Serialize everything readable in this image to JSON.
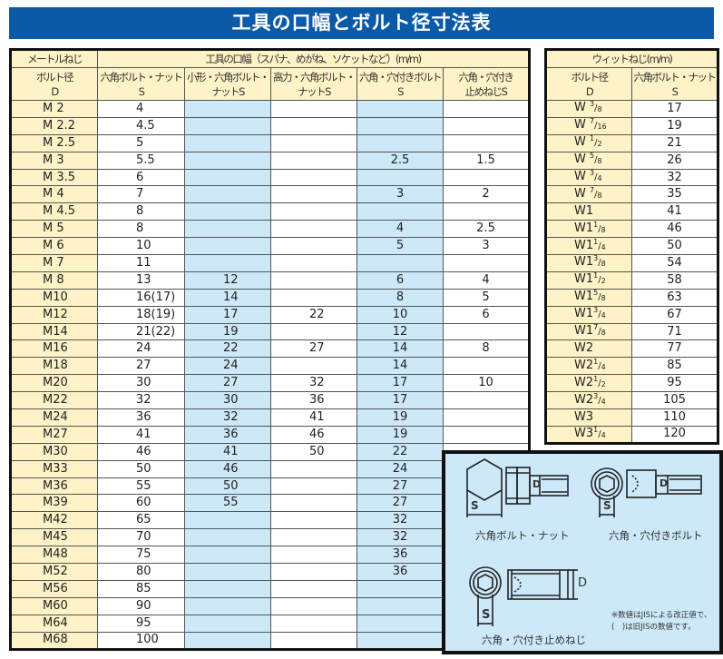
{
  "title": "工具の口幅とボルト径寸法表",
  "metric": {
    "group_header": "メートルねじ",
    "tool_header": "工具の口幅（スパナ、めがね、ソケットなど）(m/m)",
    "columns": [
      "ボルト径\nD",
      "六角ボルト・ナット\nS",
      "小形・六角ボルト・\nナットS",
      "高力・六角ボルト・\nナットS",
      "六角・穴付きボルト\nS",
      "六角・穴付き\n止めねじS"
    ],
    "rows": [
      [
        "M 2",
        "4",
        "",
        "",
        "",
        ""
      ],
      [
        "M 2.2",
        "4.5",
        "",
        "",
        "",
        ""
      ],
      [
        "M 2.5",
        "5",
        "",
        "",
        "",
        ""
      ],
      [
        "M 3",
        "5.5",
        "",
        "",
        "2.5",
        "1.5"
      ],
      [
        "M 3.5",
        "6",
        "",
        "",
        "",
        ""
      ],
      [
        "M 4",
        "7",
        "",
        "",
        "3",
        "2"
      ],
      [
        "M 4.5",
        "8",
        "",
        "",
        "",
        ""
      ],
      [
        "M 5",
        "8",
        "",
        "",
        "4",
        "2.5"
      ],
      [
        "M 6",
        "10",
        "",
        "",
        "5",
        "3"
      ],
      [
        "M 7",
        "11",
        "",
        "",
        "",
        ""
      ],
      [
        "M 8",
        "13",
        "12",
        "",
        "6",
        "4"
      ],
      [
        "M10",
        "16(17)",
        "14",
        "",
        "8",
        "5"
      ],
      [
        "M12",
        "18(19)",
        "17",
        "22",
        "10",
        "6"
      ],
      [
        "M14",
        "21(22)",
        "19",
        "",
        "12",
        ""
      ],
      [
        "M16",
        "24",
        "22",
        "27",
        "14",
        "8"
      ],
      [
        "M18",
        "27",
        "24",
        "",
        "14",
        ""
      ],
      [
        "M20",
        "30",
        "27",
        "32",
        "17",
        "10"
      ],
      [
        "M22",
        "32",
        "30",
        "36",
        "17",
        ""
      ],
      [
        "M24",
        "36",
        "32",
        "41",
        "19",
        ""
      ],
      [
        "M27",
        "41",
        "36",
        "46",
        "19",
        ""
      ],
      [
        "M30",
        "46",
        "41",
        "50",
        "22",
        ""
      ],
      [
        "M33",
        "50",
        "46",
        "",
        "24",
        ""
      ],
      [
        "M36",
        "55",
        "50",
        "",
        "27",
        ""
      ],
      [
        "M39",
        "60",
        "55",
        "",
        "27",
        ""
      ],
      [
        "M42",
        "65",
        "",
        "",
        "32",
        ""
      ],
      [
        "M45",
        "70",
        "",
        "",
        "32",
        ""
      ],
      [
        "M48",
        "75",
        "",
        "",
        "36",
        ""
      ],
      [
        "M52",
        "80",
        "",
        "",
        "36",
        ""
      ],
      [
        "M56",
        "85",
        "",
        "",
        "",
        ""
      ],
      [
        "M60",
        "90",
        "",
        "",
        "",
        ""
      ],
      [
        "M64",
        "95",
        "",
        "",
        "",
        ""
      ],
      [
        "M68",
        "100",
        "",
        "",
        "",
        ""
      ]
    ]
  },
  "whitworth": {
    "group_header": "ウィットねじ(m/m)",
    "columns": [
      "ボルト径\nD",
      "六角ボルト・ナット\nS"
    ],
    "rows": [
      {
        "w": "W ",
        "n": "3",
        "d": "8",
        "s": "17"
      },
      {
        "w": "W ",
        "n": "7",
        "d": "16",
        "s": "19"
      },
      {
        "w": "W ",
        "n": "1",
        "d": "2",
        "s": "21"
      },
      {
        "w": "W ",
        "n": "5",
        "d": "8",
        "s": "26"
      },
      {
        "w": "W ",
        "n": "3",
        "d": "4",
        "s": "32"
      },
      {
        "w": "W ",
        "n": "7",
        "d": "8",
        "s": "35"
      },
      {
        "w": "W1",
        "n": "",
        "d": "",
        "s": "41"
      },
      {
        "w": "W1",
        "n": "1",
        "d": "8",
        "s": "46"
      },
      {
        "w": "W1",
        "n": "1",
        "d": "4",
        "s": "50"
      },
      {
        "w": "W1",
        "n": "3",
        "d": "8",
        "s": "54"
      },
      {
        "w": "W1",
        "n": "1",
        "d": "2",
        "s": "58"
      },
      {
        "w": "W1",
        "n": "5",
        "d": "8",
        "s": "63"
      },
      {
        "w": "W1",
        "n": "3",
        "d": "4",
        "s": "67"
      },
      {
        "w": "W1",
        "n": "7",
        "d": "8",
        "s": "71"
      },
      {
        "w": "W2",
        "n": "",
        "d": "",
        "s": "77"
      },
      {
        "w": "W2",
        "n": "1",
        "d": "4",
        "s": "85"
      },
      {
        "w": "W2",
        "n": "1",
        "d": "2",
        "s": "95"
      },
      {
        "w": "W2",
        "n": "3",
        "d": "4",
        "s": "105"
      },
      {
        "w": "W3",
        "n": "",
        "d": "",
        "s": "110"
      },
      {
        "w": "W3",
        "n": "1",
        "d": "4",
        "s": "120"
      }
    ]
  },
  "diagram": {
    "hex_bolt_label": "六角ボルト・ナット",
    "socket_bolt_label": "六角・穴付きボルト",
    "set_screw_label": "六角・穴付き止めねじ",
    "dim_s": "S",
    "dim_d": "D",
    "note_line1": "※数値はJISによる改正値で、",
    "note_line2": "(　)は旧JISの数値です。"
  },
  "colors": {
    "title_bg": "#0a5aa8",
    "header_bg": "#fdf3c6",
    "blue_col": "#cde8f8"
  }
}
